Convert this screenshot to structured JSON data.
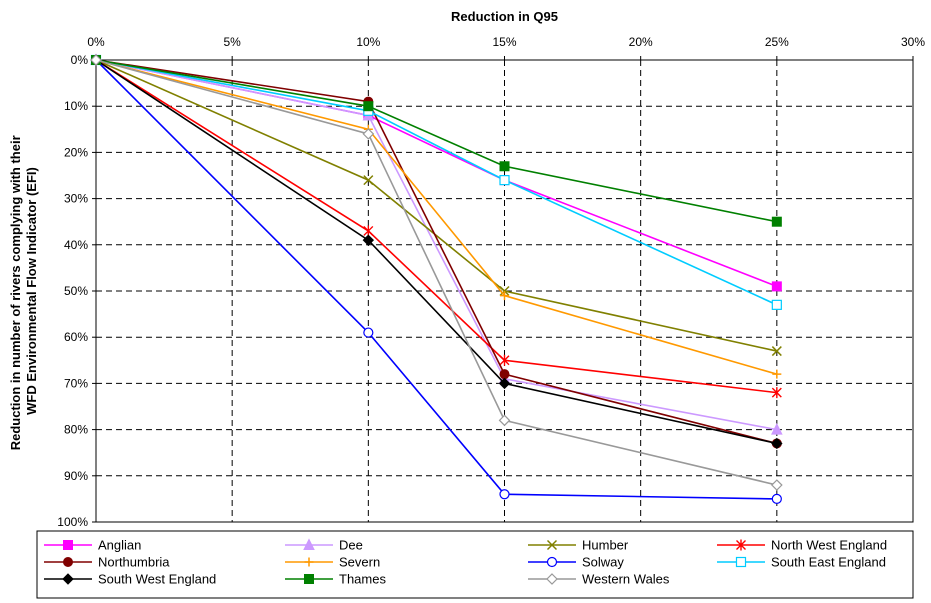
{
  "chart_data": {
    "type": "line",
    "xlabel": "Reduction in Q95",
    "ylabel_lines": [
      "Reduction in number of rivers complying with their",
      "WFD Environmental Flow Indicator (EFI)"
    ],
    "x_ticks": [
      "0%",
      "5%",
      "10%",
      "15%",
      "20%",
      "25%",
      "30%"
    ],
    "y_ticks": [
      "0%",
      "10%",
      "20%",
      "30%",
      "40%",
      "50%",
      "60%",
      "70%",
      "80%",
      "90%",
      "100%"
    ],
    "xlim": [
      0,
      30
    ],
    "ylim": [
      0,
      100
    ],
    "y_inverted": true,
    "x_axis_position": "top",
    "grid": true,
    "legend_position": "bottom",
    "x": [
      0,
      10,
      15,
      25
    ],
    "series": [
      {
        "name": "Anglian",
        "color": "#ff00ff",
        "marker": "square",
        "values": [
          0,
          12,
          26,
          49
        ]
      },
      {
        "name": "Dee",
        "color": "#cc99ff",
        "marker": "triangle",
        "values": [
          0,
          12,
          69,
          80
        ]
      },
      {
        "name": "Humber",
        "color": "#808000",
        "marker": "x",
        "values": [
          0,
          26,
          50,
          63
        ]
      },
      {
        "name": "North West England",
        "color": "#ff0000",
        "marker": "star",
        "values": [
          0,
          37,
          65,
          72
        ]
      },
      {
        "name": "Northumbria",
        "color": "#800000",
        "marker": "circle",
        "values": [
          0,
          9,
          68,
          83
        ]
      },
      {
        "name": "Severn",
        "color": "#ff9900",
        "marker": "plus",
        "values": [
          0,
          15,
          51,
          68
        ]
      },
      {
        "name": "Solway",
        "color": "#0000ff",
        "marker": "circle-open",
        "values": [
          0,
          59,
          94,
          95
        ]
      },
      {
        "name": "South East England",
        "color": "#00ccff",
        "marker": "square-open",
        "values": [
          0,
          11,
          26,
          53
        ]
      },
      {
        "name": "South West England",
        "color": "#000000",
        "marker": "diamond",
        "values": [
          0,
          39,
          70,
          83
        ]
      },
      {
        "name": "Thames",
        "color": "#008000",
        "marker": "square",
        "values": [
          0,
          10,
          23,
          35
        ]
      },
      {
        "name": "Western Wales",
        "color": "#999999",
        "marker": "diamond-open",
        "values": [
          0,
          16,
          78,
          92
        ]
      }
    ]
  }
}
